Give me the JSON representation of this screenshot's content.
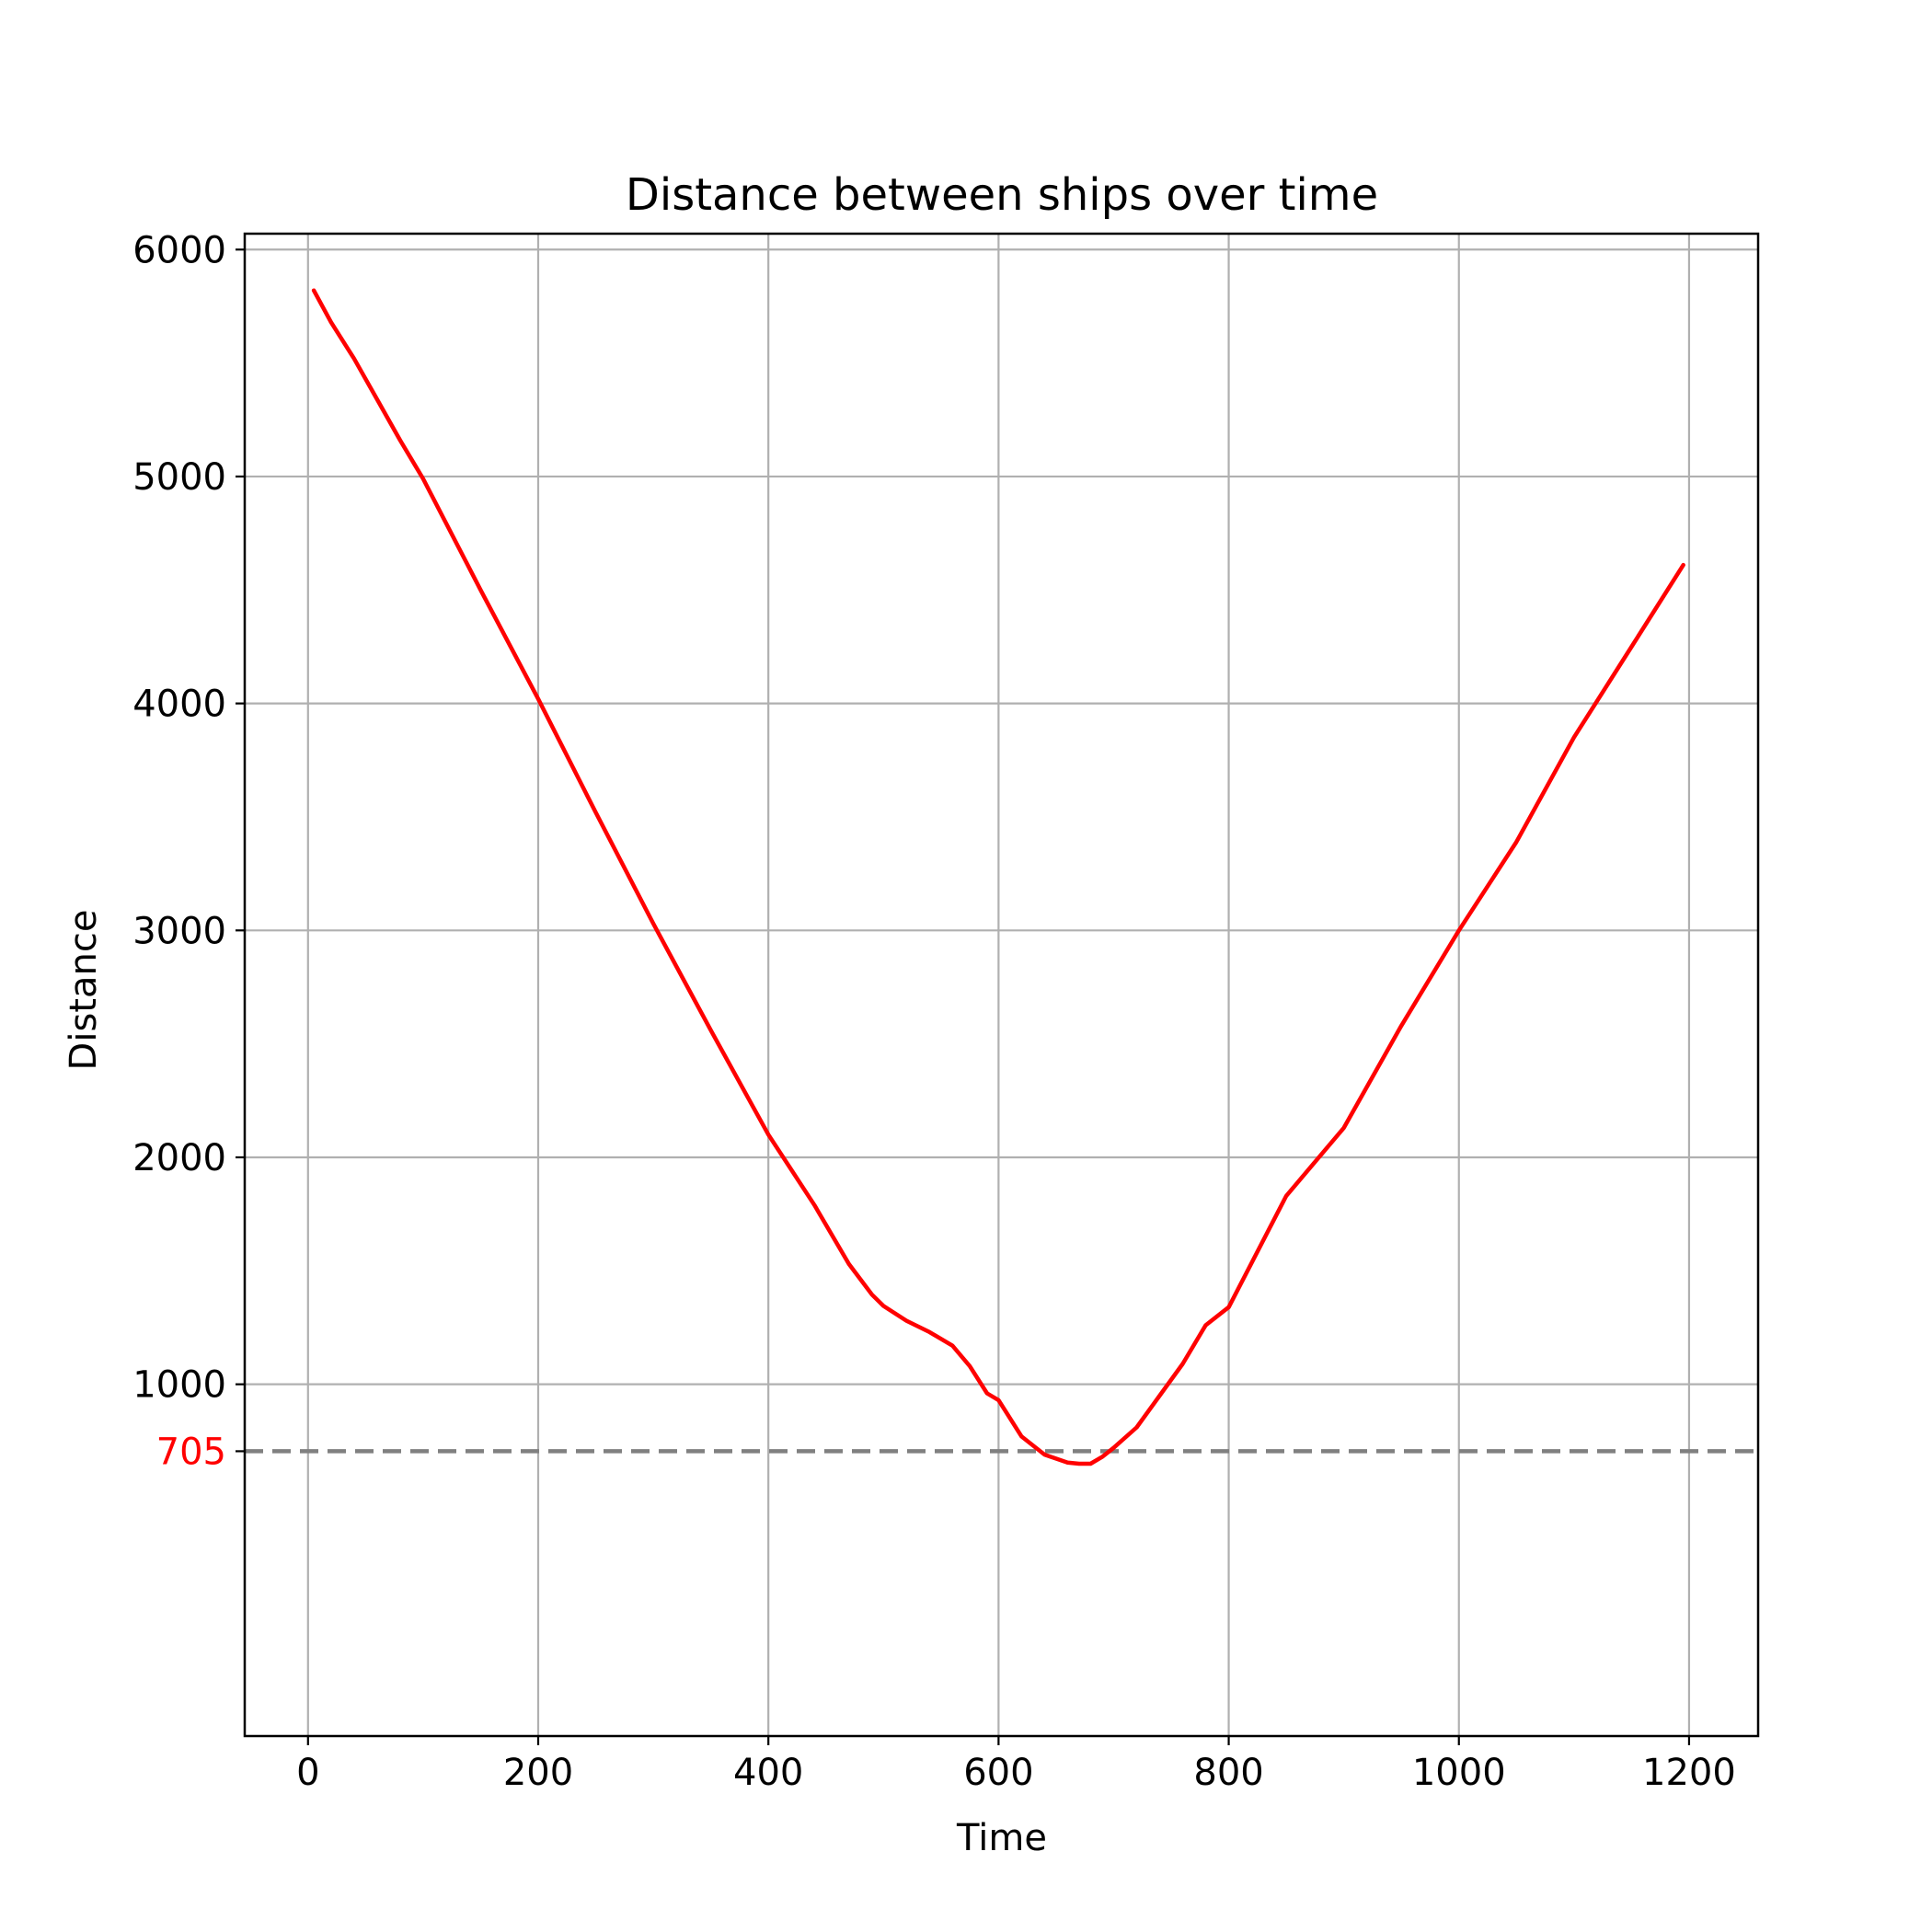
{
  "chart_data": {
    "type": "line",
    "title": "Distance between ships over time",
    "xlabel": "Time",
    "ylabel": "Distance",
    "xlim": [
      -55,
      1260
    ],
    "ylim": [
      -550,
      6070
    ],
    "xticks": [
      0,
      200,
      400,
      600,
      800,
      1000,
      1200
    ],
    "yticks": [
      1000,
      2000,
      3000,
      4000,
      5000,
      6000
    ],
    "xtick_labels": [
      "0",
      "200",
      "400",
      "600",
      "800",
      "1000",
      "1200"
    ],
    "ytick_labels": [
      "1000",
      "2000",
      "3000",
      "4000",
      "5000",
      "6000"
    ],
    "grid": true,
    "series": [
      {
        "color": "#ff0000",
        "x": [
          5,
          20,
          40,
          60,
          80,
          100,
          150,
          200,
          250,
          300,
          350,
          400,
          440,
          470,
          490,
          500,
          520,
          540,
          560,
          575,
          590,
          600,
          620,
          640,
          660,
          670,
          680,
          690,
          700,
          720,
          740,
          760,
          780,
          800,
          850,
          900,
          950,
          1000,
          1050,
          1100,
          1150,
          1195
        ],
        "y": [
          5820,
          5680,
          5520,
          5340,
          5160,
          4990,
          4500,
          4020,
          3520,
          3030,
          2560,
          2100,
          1790,
          1530,
          1395,
          1345,
          1280,
          1230,
          1170,
          1080,
          960,
          930,
          770,
          690,
          655,
          650,
          650,
          680,
          720,
          810,
          950,
          1090,
          1260,
          1340,
          1830,
          2130,
          2580,
          3000,
          3390,
          3850,
          4250,
          4610
        ]
      }
    ],
    "reference_line": {
      "y": 705,
      "label": "705",
      "label_color": "#ff0000",
      "line_color": "#808080",
      "style": "dashed"
    }
  }
}
